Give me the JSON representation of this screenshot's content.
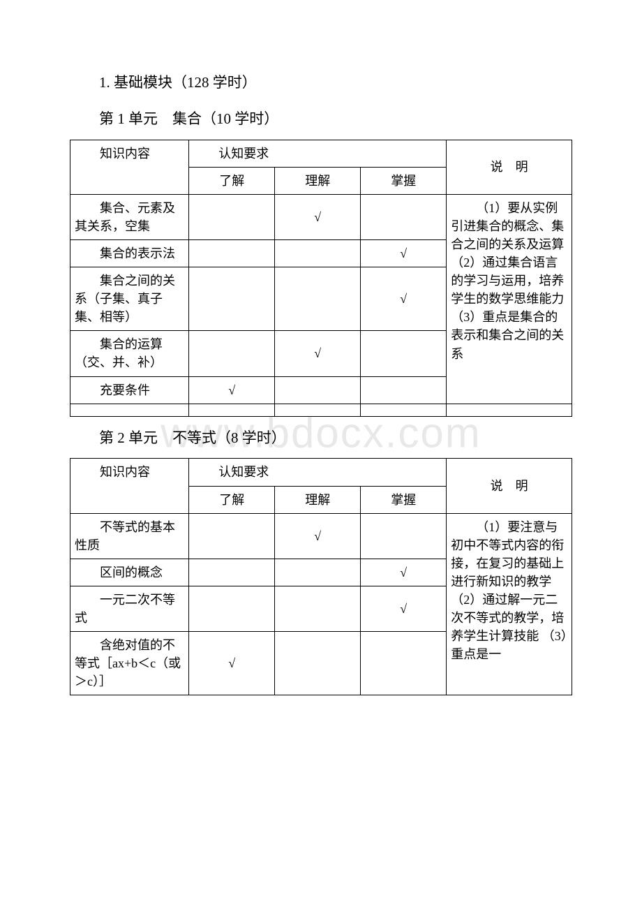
{
  "watermark": "www.bdocx.com",
  "section_heading": "1. 基础模块（128 学时）",
  "unit1": {
    "title": "第 1 单元　集合（10 学时）",
    "headers": {
      "topic": "知识内容",
      "cognition": "认知要求",
      "note": "说　明",
      "levels": [
        "了解",
        "理解",
        "掌握"
      ]
    },
    "rows": [
      {
        "topic": "集合、元素及其关系，空集",
        "marks": [
          "",
          "√",
          ""
        ]
      },
      {
        "topic": "集合的表示法",
        "marks": [
          "",
          "",
          "√"
        ]
      },
      {
        "topic": "集合之间的关系（子集、真子集、相等）",
        "marks": [
          "",
          "",
          "√"
        ]
      },
      {
        "topic": "集合的运算（交、并、补）",
        "marks": [
          "",
          "√",
          ""
        ]
      },
      {
        "topic": "充要条件",
        "marks": [
          "√",
          "",
          ""
        ]
      }
    ],
    "note": "（1）要从实例引进集合的概念、集合之间的关系及运算 （2）通过集合语言的学习与运用，培养学生的数学思维能力 （3）重点是集合的表示和集合之间的关系"
  },
  "unit2": {
    "title": "第 2 单元　不等式（8 学时）",
    "headers": {
      "topic": "知识内容",
      "cognition": "认知要求",
      "note": "说　明",
      "levels": [
        "了解",
        "理解",
        "掌握"
      ]
    },
    "rows": [
      {
        "topic": "不等式的基本性质",
        "marks": [
          "",
          "√",
          ""
        ]
      },
      {
        "topic": "区间的概念",
        "marks": [
          "",
          "",
          "√"
        ]
      },
      {
        "topic": "一元二次不等式",
        "marks": [
          "",
          "",
          "√"
        ]
      },
      {
        "topic": "含绝对值的不等式［ax+b＜c（或＞c）］",
        "marks": [
          "√",
          "",
          ""
        ]
      }
    ],
    "note": "（1）要注意与初中不等式内容的衔接，在复习的基础上进行新知识的教学 （2）通过解一元二次不等式的教学，培养学生计算技能 （3）重点是一"
  }
}
